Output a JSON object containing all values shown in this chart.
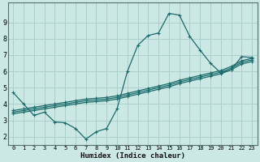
{
  "title": "",
  "xlabel": "Humidex (Indice chaleur)",
  "ylabel": "",
  "bg_color": "#cce8e4",
  "grid_color": "#aacfcb",
  "line_color": "#1a6b6b",
  "xlim": [
    -0.5,
    23.5
  ],
  "ylim": [
    1.5,
    10.2
  ],
  "yticks": [
    2,
    3,
    4,
    5,
    6,
    7,
    8,
    9
  ],
  "xticks": [
    0,
    1,
    2,
    3,
    4,
    5,
    6,
    7,
    8,
    9,
    10,
    11,
    12,
    13,
    14,
    15,
    16,
    17,
    18,
    19,
    20,
    21,
    22,
    23
  ],
  "line1_x": [
    0,
    1,
    2,
    3,
    4,
    5,
    6,
    7,
    8,
    9,
    10,
    11,
    12,
    13,
    14,
    15,
    16,
    17,
    18,
    19,
    20,
    21,
    22,
    23
  ],
  "line1_y": [
    4.7,
    4.0,
    3.3,
    3.5,
    2.9,
    2.85,
    2.5,
    1.85,
    2.3,
    2.5,
    3.7,
    6.0,
    7.6,
    8.2,
    8.35,
    9.55,
    9.45,
    8.15,
    7.3,
    6.5,
    5.9,
    6.1,
    6.9,
    6.85
  ],
  "line2_x": [
    0,
    1,
    2,
    3,
    4,
    5,
    6,
    7,
    8,
    9,
    10,
    11,
    12,
    13,
    14,
    15,
    16,
    17,
    18,
    19,
    20,
    21,
    22,
    23
  ],
  "line2_y": [
    3.6,
    3.7,
    3.8,
    3.9,
    4.0,
    4.1,
    4.2,
    4.3,
    4.35,
    4.4,
    4.5,
    4.65,
    4.8,
    4.95,
    5.1,
    5.25,
    5.45,
    5.6,
    5.75,
    5.9,
    6.05,
    6.3,
    6.65,
    6.8
  ],
  "line3_x": [
    0,
    1,
    2,
    3,
    4,
    5,
    6,
    7,
    8,
    9,
    10,
    11,
    12,
    13,
    14,
    15,
    16,
    17,
    18,
    19,
    20,
    21,
    22,
    23
  ],
  "line3_y": [
    3.5,
    3.6,
    3.7,
    3.8,
    3.9,
    4.0,
    4.1,
    4.2,
    4.25,
    4.3,
    4.4,
    4.55,
    4.7,
    4.85,
    5.0,
    5.15,
    5.35,
    5.5,
    5.65,
    5.8,
    5.95,
    6.2,
    6.55,
    6.7
  ],
  "line4_x": [
    0,
    1,
    2,
    3,
    4,
    5,
    6,
    7,
    8,
    9,
    10,
    11,
    12,
    13,
    14,
    15,
    16,
    17,
    18,
    19,
    20,
    21,
    22,
    23
  ],
  "line4_y": [
    3.4,
    3.5,
    3.6,
    3.7,
    3.8,
    3.9,
    4.0,
    4.1,
    4.15,
    4.2,
    4.3,
    4.45,
    4.6,
    4.75,
    4.9,
    5.05,
    5.25,
    5.4,
    5.55,
    5.7,
    5.85,
    6.1,
    6.45,
    6.6
  ]
}
